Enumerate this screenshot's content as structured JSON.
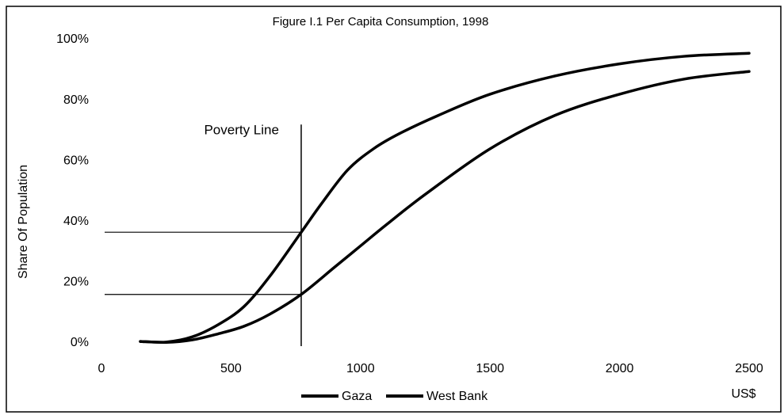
{
  "chart_data": {
    "type": "line",
    "title": "Figure I.1 Per Capita Consumption, 1998",
    "y_label": "Share Of Population",
    "x_unit": "US$",
    "xlim": [
      0,
      2500
    ],
    "xticks": [
      0,
      500,
      1000,
      1500,
      2000,
      2500
    ],
    "ylim": [
      0,
      100
    ],
    "yticks": [
      {
        "value": 0,
        "label": "0%"
      },
      {
        "value": 20,
        "label": "20%"
      },
      {
        "value": 40,
        "label": "40%"
      },
      {
        "value": 60,
        "label": "60%"
      },
      {
        "value": 80,
        "label": "80%"
      },
      {
        "value": 100,
        "label": "100%"
      }
    ],
    "grid": false,
    "legend": "bottom",
    "series": [
      {
        "name": "Gaza",
        "color": "#000000",
        "x": [
          150,
          250,
          350,
          450,
          550,
          650,
          771,
          850,
          950,
          1050,
          1150,
          1300,
          1500,
          1750,
          2000,
          2250,
          2500
        ],
        "values": [
          0.5,
          0.3,
          2,
          6,
          12,
          22,
          36.5,
          46,
          57,
          64,
          69,
          75,
          82,
          88,
          92,
          94.5,
          95.5
        ]
      },
      {
        "name": "West Bank",
        "color": "#000000",
        "x": [
          150,
          250,
          350,
          450,
          550,
          650,
          771,
          900,
          1000,
          1100,
          1250,
          1500,
          1750,
          2000,
          2250,
          2500
        ],
        "values": [
          0.5,
          0.2,
          1,
          3,
          5.5,
          9.5,
          16,
          25,
          32,
          39,
          49,
          64,
          75,
          82,
          87,
          89.5
        ]
      }
    ],
    "annotation": {
      "text": "Poverty Line",
      "x": 771,
      "y_top": 72,
      "levels": [
        36.5,
        16
      ]
    }
  }
}
